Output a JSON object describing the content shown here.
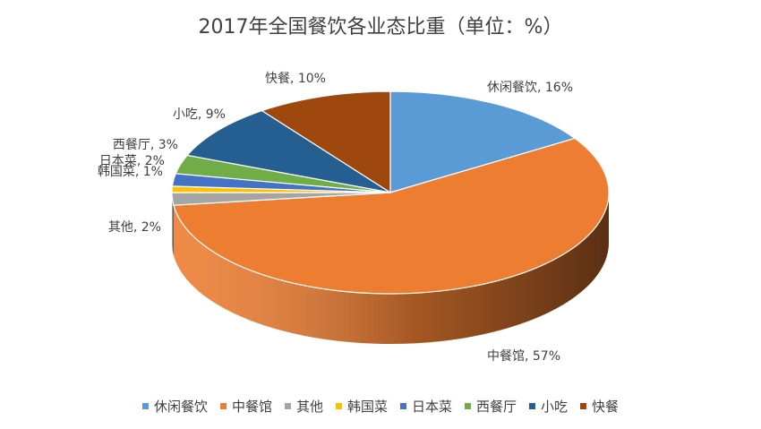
{
  "chart_data": {
    "type": "pie",
    "title": "2017年全国餐饮各业态比重（单位：%）",
    "categories": [
      "休闲餐饮",
      "中餐馆",
      "其他",
      "韩国菜",
      "日本菜",
      "西餐厅",
      "小吃",
      "快餐"
    ],
    "values": [
      16,
      57,
      2,
      1,
      2,
      3,
      9,
      10
    ],
    "value_suffix": "%",
    "data_labels": [
      "休闲餐饮, 16%",
      "中餐馆, 57%",
      "其他, 2%",
      "韩国菜, 1%",
      "日本菜, 2%",
      "西餐厅, 3%",
      "小吃, 9%",
      "快餐, 10%"
    ],
    "colors": [
      "#5B9BD5",
      "#ED7D31",
      "#A5A5A5",
      "#FFC000",
      "#4472C4",
      "#70AD47",
      "#255E91",
      "#9E480E"
    ],
    "legend_position": "bottom",
    "style": "3d"
  }
}
